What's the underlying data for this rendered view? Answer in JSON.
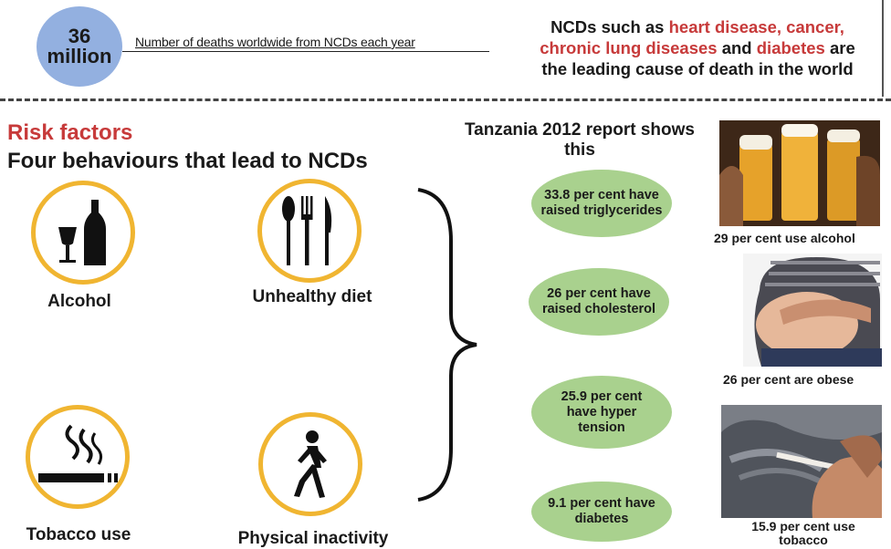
{
  "header": {
    "stat_number": "36",
    "stat_unit": "million",
    "stat_description": "Number of deaths worldwide from NCDs each year",
    "ncd_intro": "NCDs such as ",
    "ncd_heart": "heart disease, cancer,",
    "ncd_lung": "chronic lung diseases",
    "ncd_and": " and ",
    "ncd_diabetes": "diabetes",
    "ncd_are": " are",
    "ncd_tail": "the leading cause of death in the world"
  },
  "risk": {
    "title": "Risk factors",
    "subtitle": "Four behaviours that lead to NCDs",
    "items": [
      {
        "label": "Alcohol",
        "icon": "alcohol-icon"
      },
      {
        "label": "Unhealthy diet",
        "icon": "cutlery-icon"
      },
      {
        "label": "Tobacco use",
        "icon": "cigarette-icon"
      },
      {
        "label": "Physical inactivity",
        "icon": "walking-person-icon"
      }
    ]
  },
  "report": {
    "heading_line1": "Tanzania 2012 report shows",
    "heading_line2": "this",
    "stats": [
      {
        "line1": "33.8 per cent have",
        "line2": "raised triglycerides",
        "line3": ""
      },
      {
        "line1": "26 per cent have",
        "line2": "raised cholesterol",
        "line3": ""
      },
      {
        "line1": "25.9 per cent",
        "line2": "have hyper",
        "line3": "tension"
      },
      {
        "line1": "9.1 per cent have",
        "line2": "diabetes",
        "line3": ""
      }
    ]
  },
  "photos": [
    {
      "caption": "29 per cent use alcohol",
      "image": "beer-glasses-photo"
    },
    {
      "caption": "26 per cent are obese",
      "image": "obese-belly-photo"
    },
    {
      "caption_line1": "15.9 per cent use",
      "caption_line2": "tobacco",
      "image": "smoking-hand-photo"
    }
  ],
  "colors": {
    "accent_red": "#c73a3a",
    "circle_blue": "#93b0e0",
    "ring_gold": "#f0b531",
    "oval_green": "#a9d18e"
  }
}
